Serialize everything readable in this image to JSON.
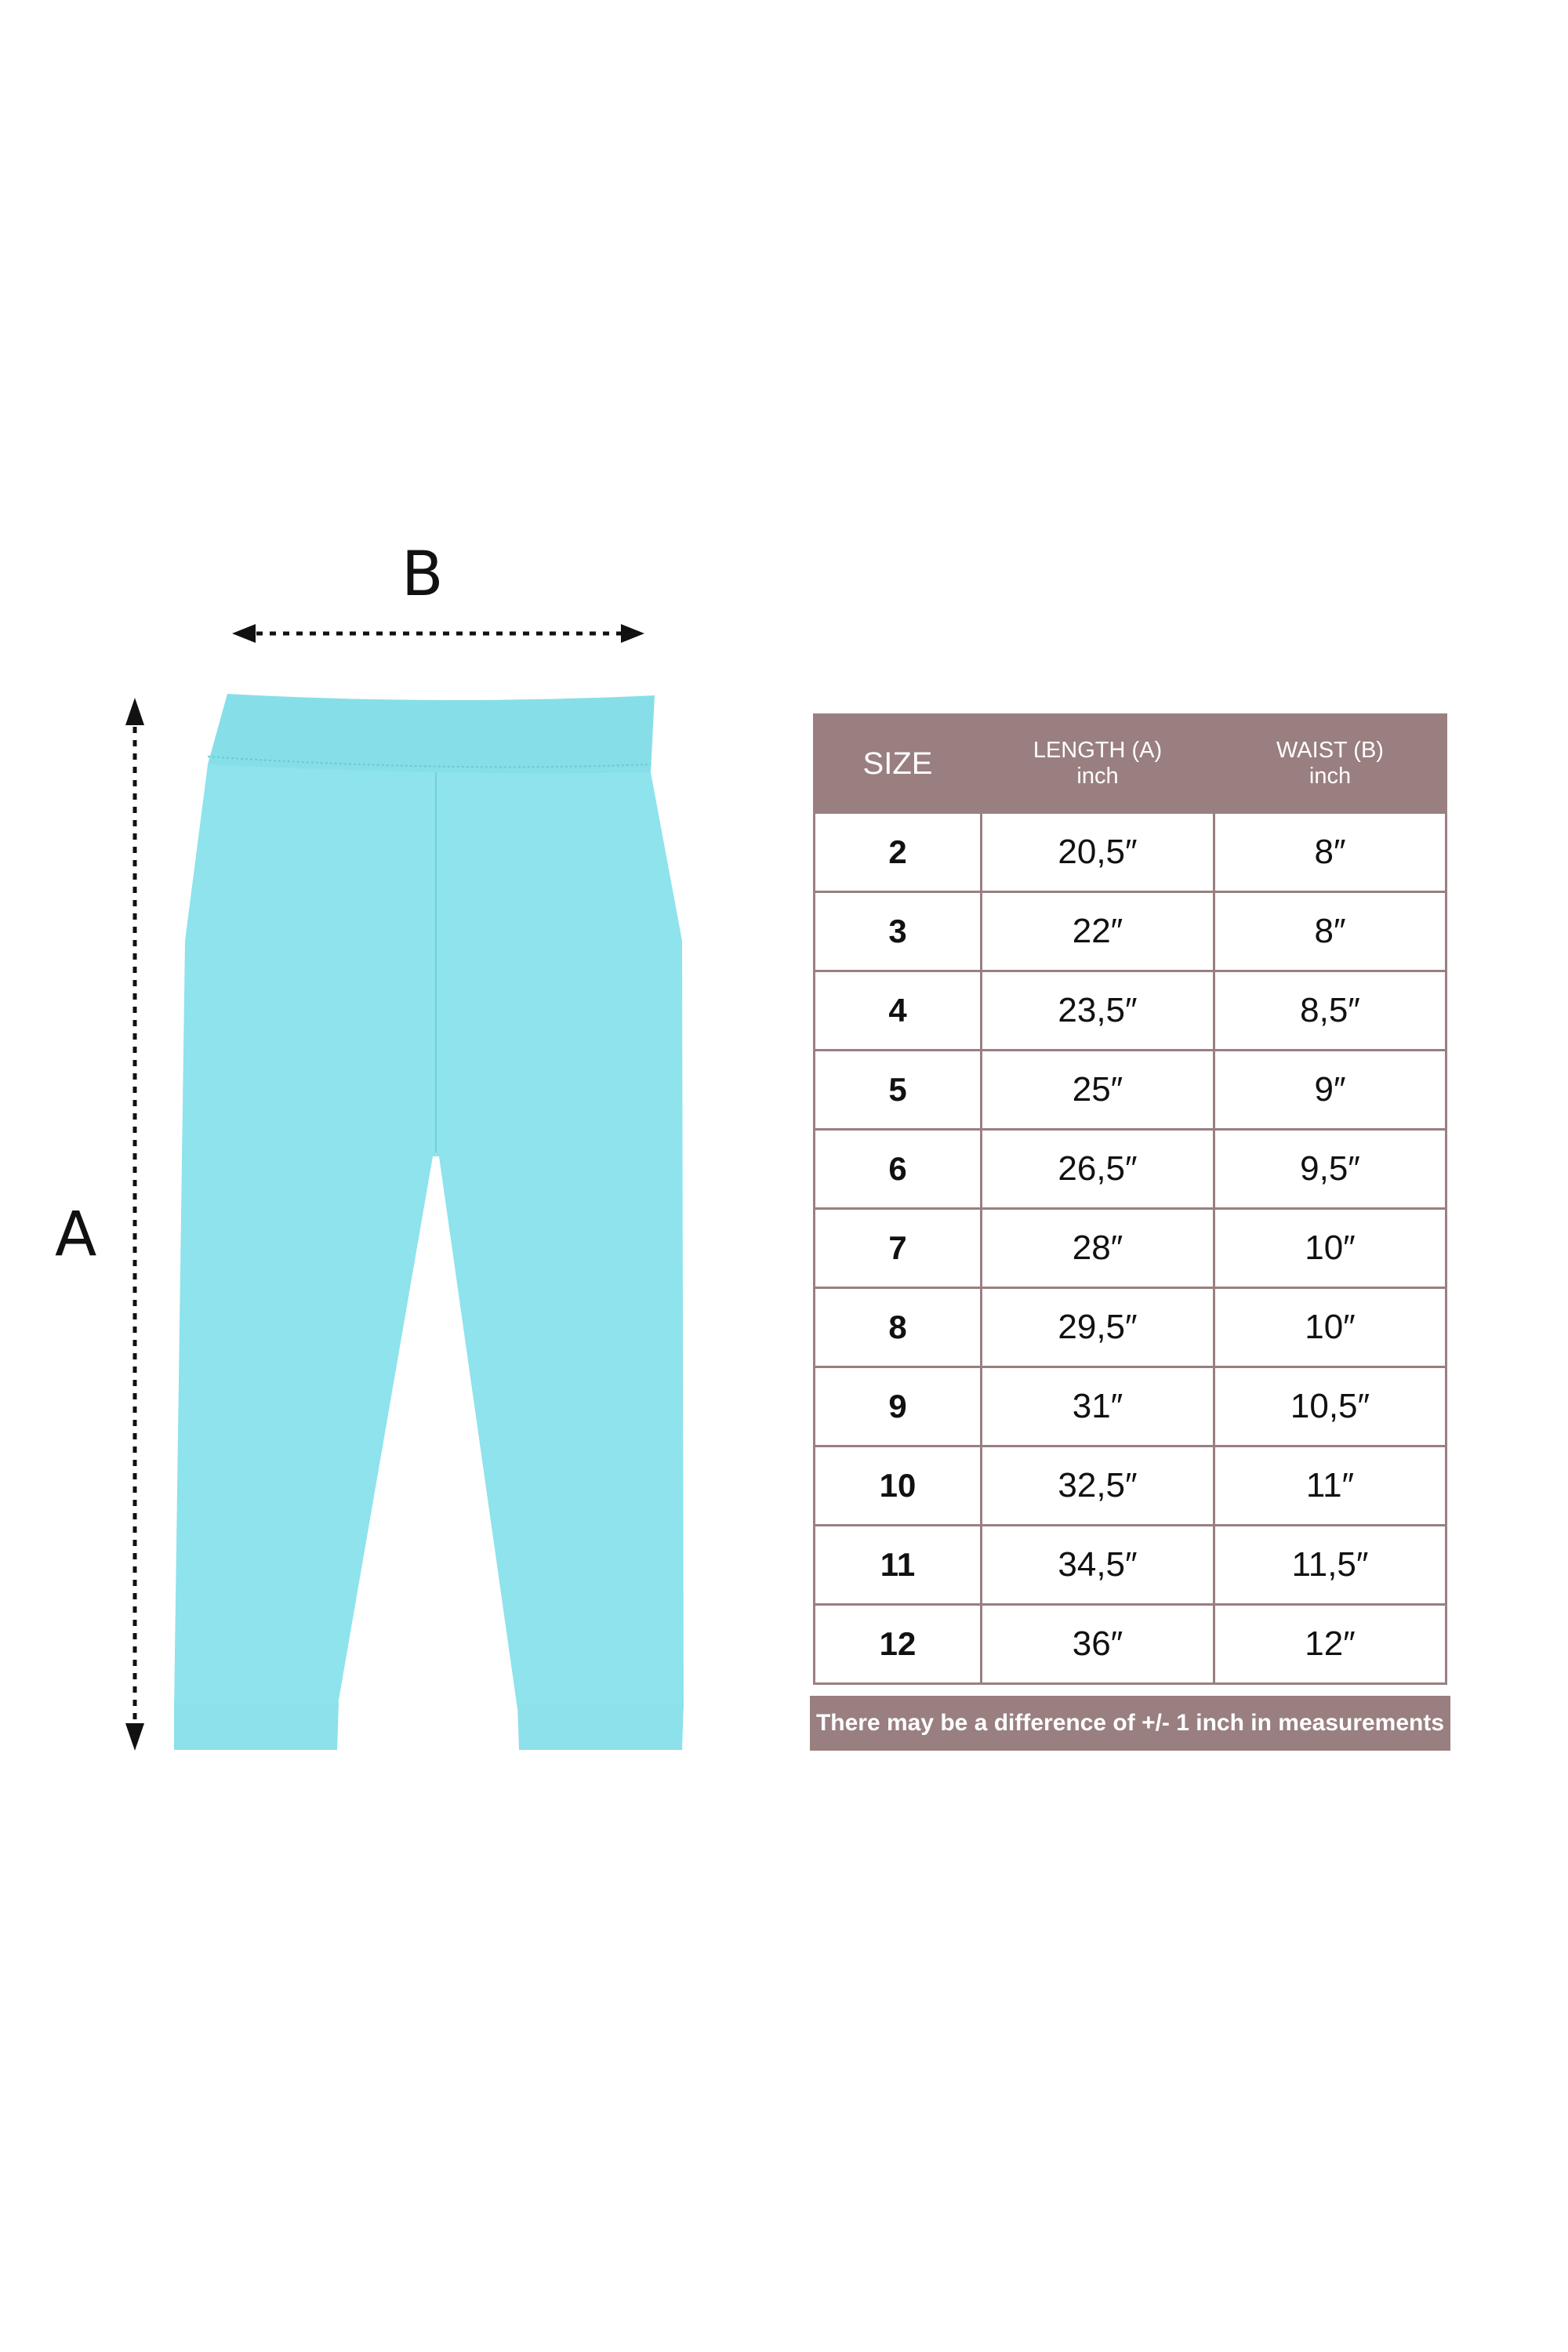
{
  "diagram": {
    "label_a": "A",
    "label_b": "B",
    "garment_color": "#8ee3ec"
  },
  "table": {
    "headers": {
      "size": "SIZE",
      "length": "LENGTH (A)",
      "length_unit": "inch",
      "waist": "WAIST (B)",
      "waist_unit": "inch"
    },
    "header_color": "#9a7f80",
    "rows": [
      {
        "size": "2",
        "length": "20,5″",
        "waist": "8″"
      },
      {
        "size": "3",
        "length": "22″",
        "waist": "8″"
      },
      {
        "size": "4",
        "length": "23,5″",
        "waist": "8,5″"
      },
      {
        "size": "5",
        "length": "25″",
        "waist": "9″"
      },
      {
        "size": "6",
        "length": "26,5″",
        "waist": "9,5″"
      },
      {
        "size": "7",
        "length": "28″",
        "waist": "10″"
      },
      {
        "size": "8",
        "length": "29,5″",
        "waist": "10″"
      },
      {
        "size": "9",
        "length": "31″",
        "waist": "10,5″"
      },
      {
        "size": "10",
        "length": "32,5″",
        "waist": "11″"
      },
      {
        "size": "11",
        "length": "34,5″",
        "waist": "11,5″"
      },
      {
        "size": "12",
        "length": "36″",
        "waist": "12″"
      }
    ]
  },
  "note": "There may be a difference of +/- 1 inch in measurements"
}
